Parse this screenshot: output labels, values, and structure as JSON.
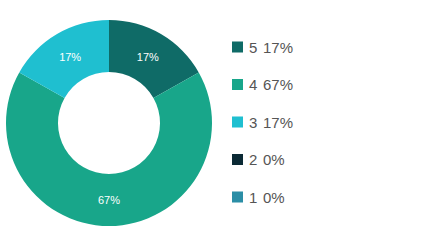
{
  "chart_data": {
    "type": "donut",
    "categories": [
      "5",
      "4",
      "3",
      "2",
      "1"
    ],
    "values": [
      17,
      67,
      17,
      0,
      0
    ],
    "value_labels": [
      "17%",
      "67%",
      "17%",
      "0%",
      "0%"
    ],
    "colors": [
      "#0f6b67",
      "#18a68a",
      "#1fbfd0",
      "#0b2a35",
      "#2b8ea6"
    ],
    "data_labels": true,
    "legend": "right"
  }
}
